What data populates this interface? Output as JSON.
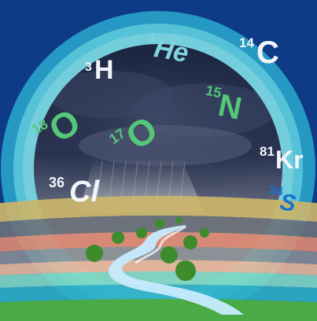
{
  "colors": {
    "background": "#0e3a86",
    "outer_ring": "#39b9d6",
    "inner_ring": "#7fd4df",
    "sky_dark": "#1f2a45",
    "sky_light": "#8b8f9c",
    "band_tan": "#c9b46a",
    "band_salmon": "#e28d73",
    "band_grey": "#6a6f78",
    "band_teal": "#3fb0a7",
    "band_green": "#4aa84a",
    "river": "#bfe6ff",
    "dots": "#3f8a2a",
    "text_white": "#f2f5fa",
    "text_green": "#54c878",
    "text_blue": "#1a73c9"
  },
  "isotopes": [
    {
      "mass": "3",
      "symbol": "H",
      "color": "#f2f5fa"
    },
    {
      "mass": "3",
      "symbol": "He",
      "color": "#7fd4df"
    },
    {
      "mass": "14",
      "symbol": "C",
      "color": "#f2f5fa"
    },
    {
      "mass": "18",
      "symbol": "O",
      "color": "#54c878"
    },
    {
      "mass": "17",
      "symbol": "O",
      "color": "#54c878"
    },
    {
      "mass": "15",
      "symbol": "N",
      "color": "#54c878"
    },
    {
      "mass": "81",
      "symbol": "Kr",
      "color": "#f2f5fa"
    },
    {
      "mass": "36",
      "symbol": "Cl",
      "color": "#f2f5fa"
    },
    {
      "mass": "34",
      "symbol": "S",
      "color": "#1a73c9"
    }
  ]
}
